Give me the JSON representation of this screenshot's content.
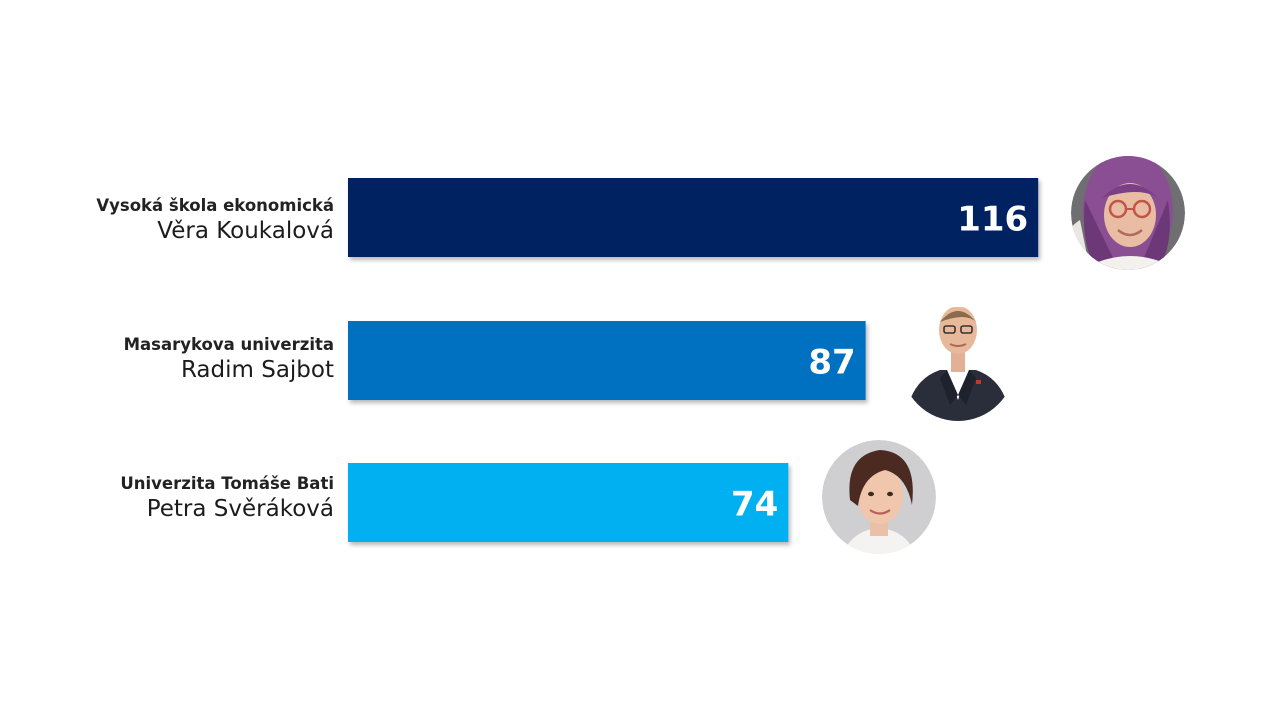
{
  "chart_data": {
    "type": "bar",
    "orientation": "horizontal",
    "categories": [
      "Vysoká škola ekonomická",
      "Masarykova univerzita",
      "Univerzita Tomáše Bati"
    ],
    "persons": [
      "Věra Koukalová",
      "Radim Sajbot",
      "Petra Svěráková"
    ],
    "values": [
      116,
      87,
      74
    ],
    "value_labels": [
      "116",
      "87",
      "74"
    ],
    "colors": [
      "#002060",
      "#0070C0",
      "#00B0F0"
    ],
    "title": "",
    "xlabel": "",
    "ylabel": "",
    "grid": false,
    "legend": "none",
    "avatars": [
      "photo-avatar-purple-hair",
      "photo-avatar-man-suit",
      "photo-avatar-woman-short-hair"
    ]
  }
}
